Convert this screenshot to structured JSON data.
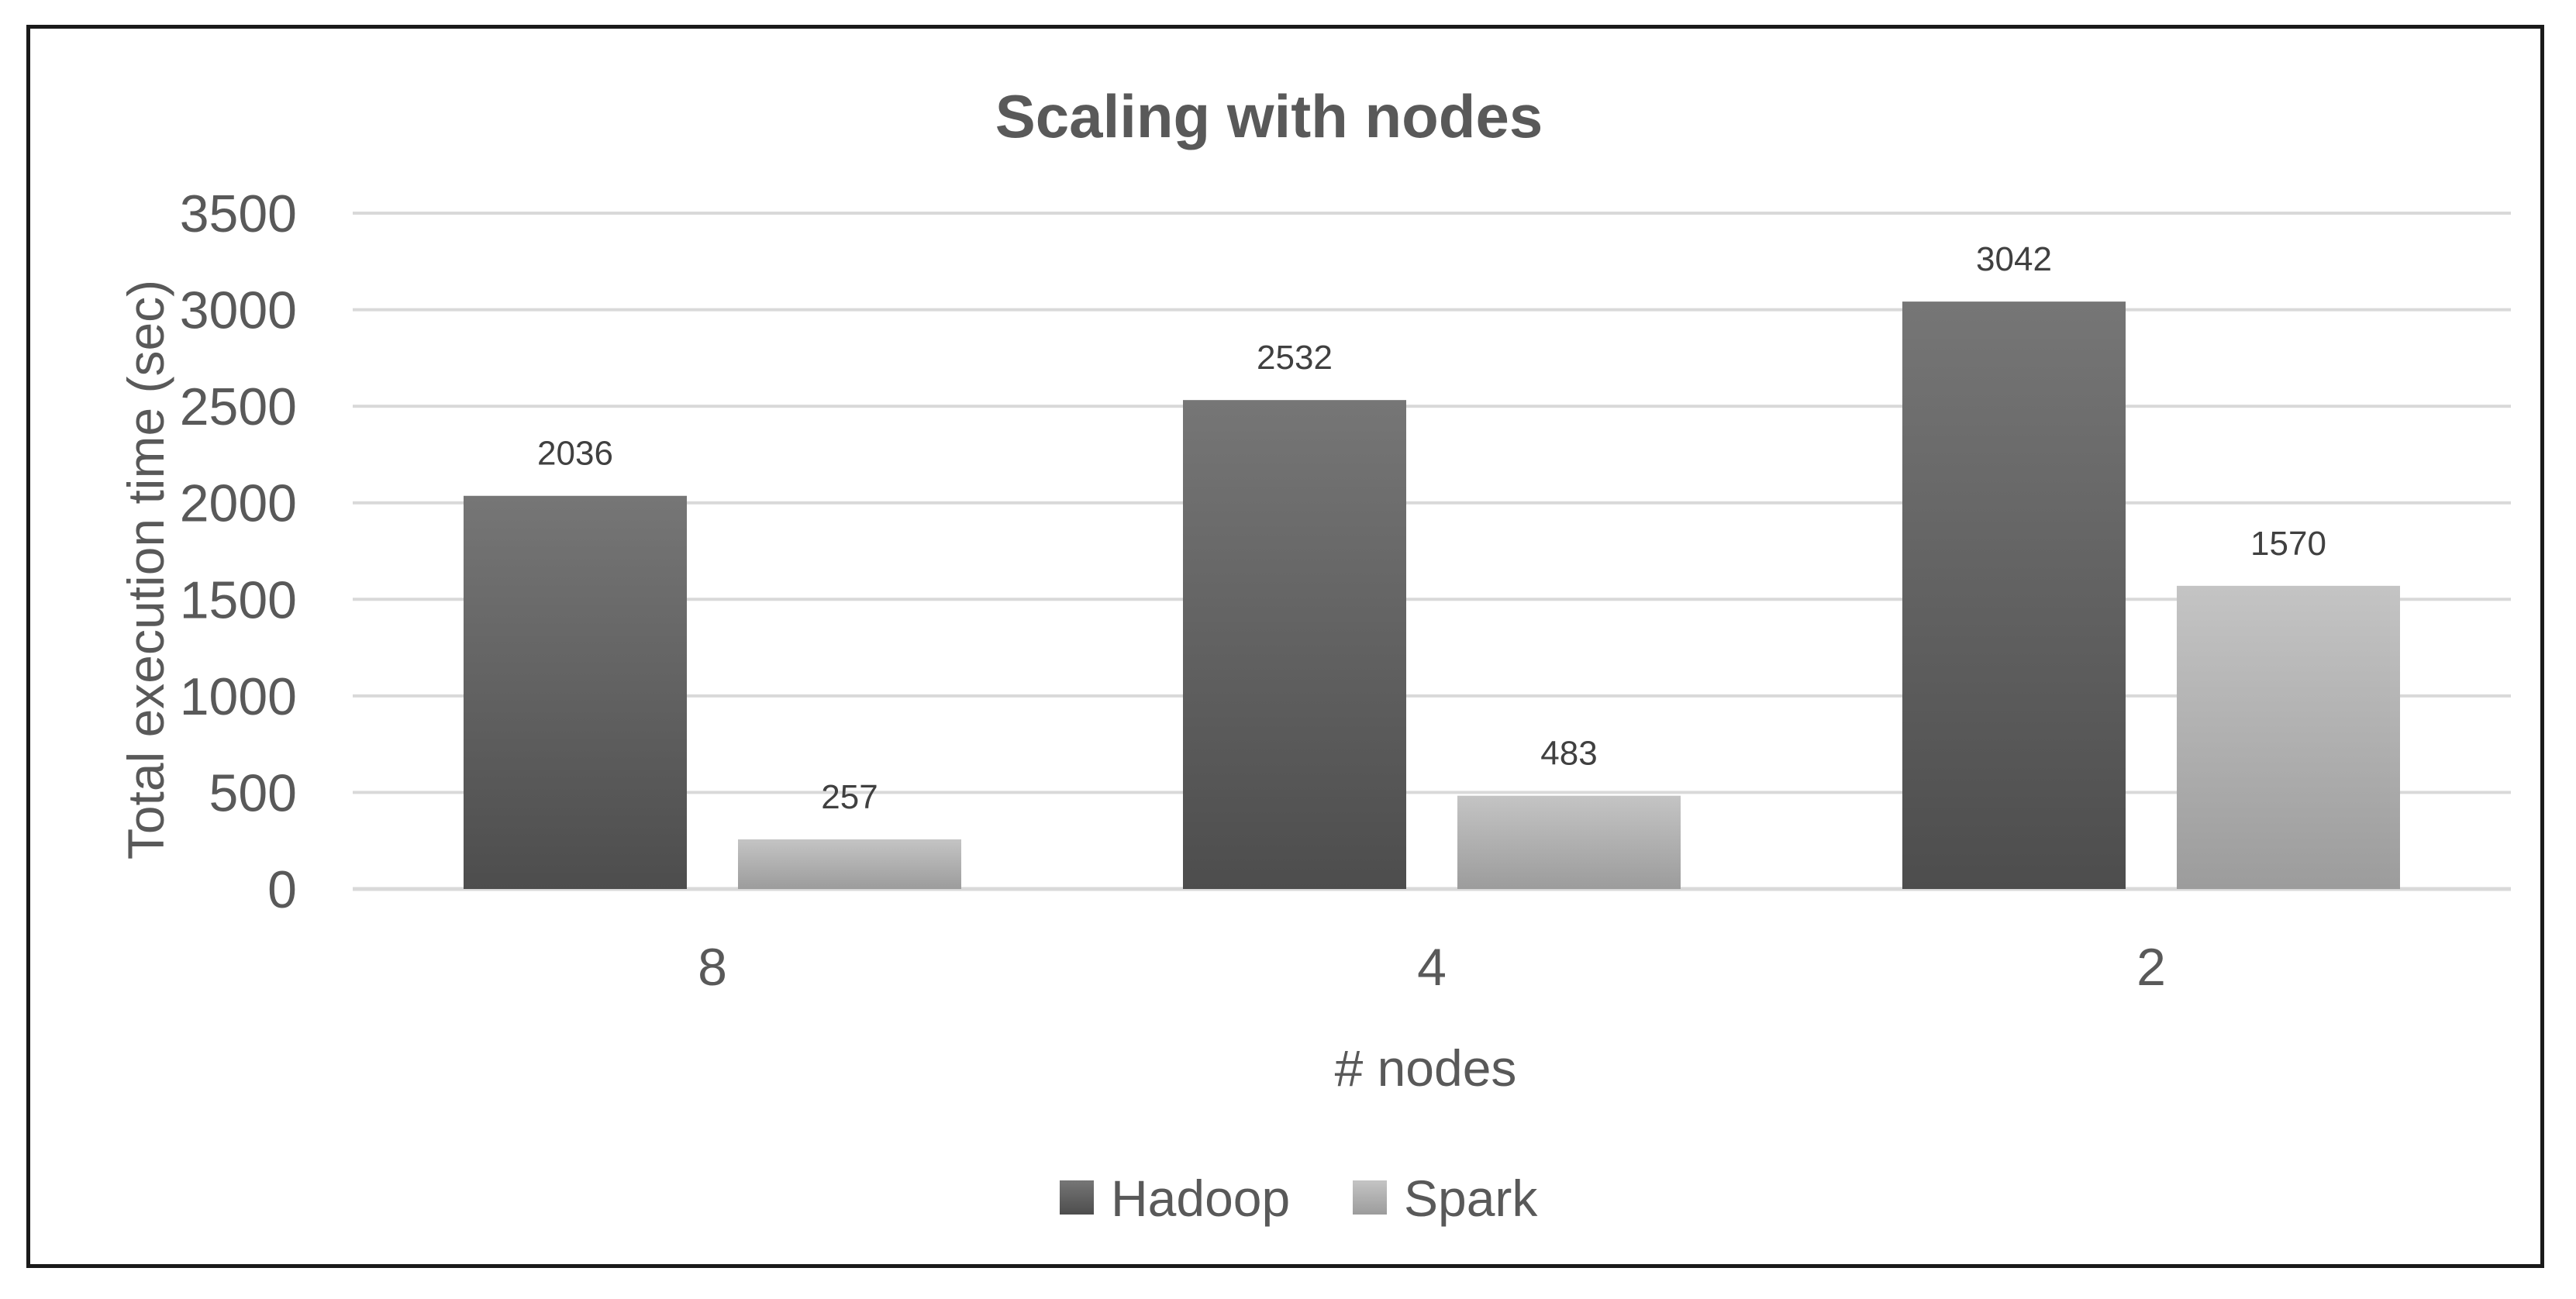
{
  "chart_data": {
    "type": "bar",
    "title": "Scaling with nodes",
    "xlabel": "# nodes",
    "ylabel": "Total execution time (sec)",
    "categories": [
      "8",
      "4",
      "2"
    ],
    "series": [
      {
        "name": "Hadoop",
        "values": [
          2036,
          2532,
          3042
        ],
        "color_top": "#767676",
        "color_bottom": "#4d4d4d"
      },
      {
        "name": "Spark",
        "values": [
          257,
          483,
          1570
        ],
        "color_top": "#c4c4c4",
        "color_bottom": "#9c9c9c"
      }
    ],
    "ylim": [
      0,
      3500
    ],
    "yticks": [
      0,
      500,
      1000,
      1500,
      2000,
      2500,
      3000,
      3500
    ],
    "grid": true,
    "legend_position": "bottom",
    "data_labels": true
  }
}
